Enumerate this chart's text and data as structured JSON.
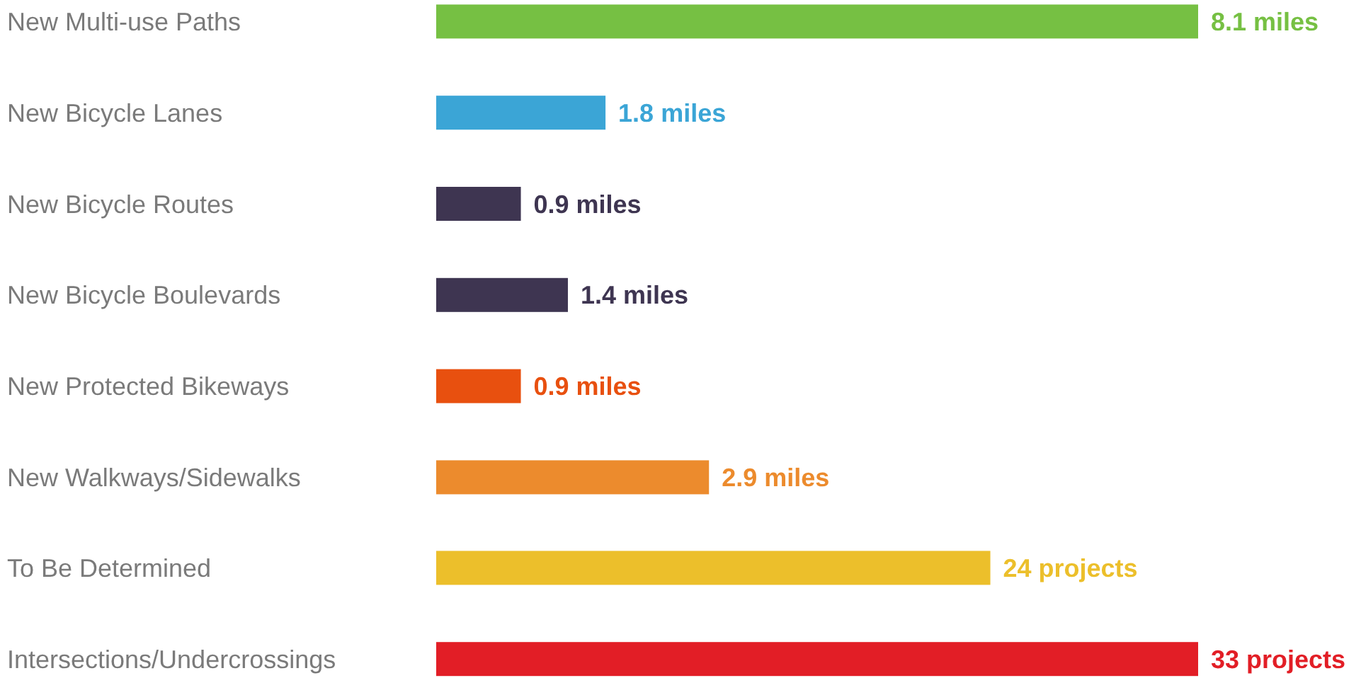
{
  "chart_data": [
    {
      "type": "bar",
      "orientation": "horizontal",
      "categories": [
        "New Multi-use Paths",
        "New Bicycle Lanes",
        "New Bicycle Routes",
        "New Bicycle Boulevards",
        "New Protected Bikeways",
        "New Walkways/Sidewalks"
      ],
      "values": [
        8.1,
        1.8,
        0.9,
        1.4,
        0.9,
        2.9
      ],
      "colors": [
        "#76c043",
        "#3ba5d6",
        "#3e3551",
        "#3e3551",
        "#e8500f",
        "#ec8b2d"
      ],
      "value_labels": [
        "8.1 miles",
        "1.8 miles",
        "0.9 miles",
        "1.4 miles",
        "0.9 miles",
        "2.9 miles"
      ]
    },
    {
      "type": "bar",
      "orientation": "horizontal",
      "categories": [
        "To Be Determined",
        "Intersections/Undercrossings"
      ],
      "values": [
        24,
        33
      ],
      "colors": [
        "#ecbf2b",
        "#e21e26"
      ],
      "value_labels": [
        "24 projects",
        "33 projects"
      ]
    }
  ]
}
